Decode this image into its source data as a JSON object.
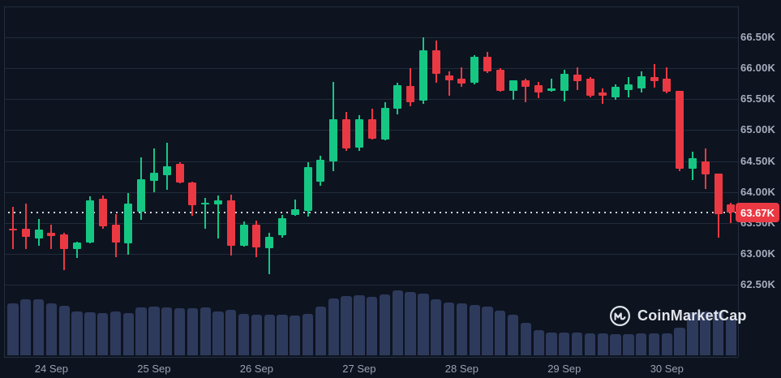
{
  "chart": {
    "current_price": {
      "label": "63.67K",
      "value": 63.67
    },
    "watermark": {
      "brand": "CoinMarketCap"
    },
    "colors": {
      "background": "#0D1420",
      "up": "#16C784",
      "down": "#EA3943",
      "volume": "#2E3A5C",
      "grid": "#212B3B",
      "axis_text": "#A8AEBF",
      "badge_bg": "#EA3943",
      "badge_text": "#FFFFFF",
      "dotted_line": "#E8EAF0"
    }
  },
  "chart_data": {
    "type": "candlestick",
    "title": "",
    "ylabel": "",
    "xlabel": "",
    "ylim": [
      62.5,
      67.0
    ],
    "grid": true,
    "legend_position": "none",
    "y_ticks": [
      "66.50K",
      "66.00K",
      "65.50K",
      "65.00K",
      "64.50K",
      "64.00K",
      "63.50K",
      "63.00K",
      "62.50K"
    ],
    "y_tick_values": [
      66.5,
      66.0,
      65.5,
      65.0,
      64.5,
      64.0,
      63.5,
      63.0,
      62.5
    ],
    "x_ticks": [
      "24 Sep",
      "25 Sep",
      "26 Sep",
      "27 Sep",
      "28 Sep",
      "29 Sep",
      "30 Sep"
    ],
    "x_tick_candle_indices": [
      3,
      11,
      19,
      27,
      35,
      43,
      51
    ],
    "candles_per_day": 8,
    "current_price": 63.67,
    "candles": [
      {
        "o": 63.4,
        "h": 63.76,
        "l": 63.08,
        "c": 63.38
      },
      {
        "o": 63.4,
        "h": 63.81,
        "l": 63.08,
        "c": 63.27
      },
      {
        "o": 63.25,
        "h": 63.56,
        "l": 63.13,
        "c": 63.39
      },
      {
        "o": 63.34,
        "h": 63.47,
        "l": 63.08,
        "c": 63.29
      },
      {
        "o": 63.32,
        "h": 63.34,
        "l": 62.74,
        "c": 63.08
      },
      {
        "o": 63.08,
        "h": 63.2,
        "l": 62.93,
        "c": 63.18
      },
      {
        "o": 63.18,
        "h": 63.93,
        "l": 63.17,
        "c": 63.86
      },
      {
        "o": 63.89,
        "h": 63.94,
        "l": 63.4,
        "c": 63.45
      },
      {
        "o": 63.47,
        "h": 63.64,
        "l": 62.95,
        "c": 63.18
      },
      {
        "o": 63.17,
        "h": 63.98,
        "l": 62.98,
        "c": 63.81
      },
      {
        "o": 63.68,
        "h": 64.56,
        "l": 63.55,
        "c": 64.21
      },
      {
        "o": 64.18,
        "h": 64.7,
        "l": 64.0,
        "c": 64.31
      },
      {
        "o": 64.27,
        "h": 64.79,
        "l": 64.04,
        "c": 64.42
      },
      {
        "o": 64.45,
        "h": 64.48,
        "l": 64.14,
        "c": 64.15
      },
      {
        "o": 64.15,
        "h": 64.16,
        "l": 63.62,
        "c": 63.78
      },
      {
        "o": 63.8,
        "h": 63.91,
        "l": 63.41,
        "c": 63.82
      },
      {
        "o": 63.8,
        "h": 63.94,
        "l": 63.25,
        "c": 63.86
      },
      {
        "o": 63.87,
        "h": 63.96,
        "l": 62.97,
        "c": 63.13
      },
      {
        "o": 63.13,
        "h": 63.52,
        "l": 63.11,
        "c": 63.47
      },
      {
        "o": 63.47,
        "h": 63.54,
        "l": 62.95,
        "c": 63.1
      },
      {
        "o": 63.09,
        "h": 63.34,
        "l": 62.67,
        "c": 63.28
      },
      {
        "o": 63.3,
        "h": 63.63,
        "l": 63.26,
        "c": 63.57
      },
      {
        "o": 63.63,
        "h": 63.88,
        "l": 63.61,
        "c": 63.72
      },
      {
        "o": 63.69,
        "h": 64.48,
        "l": 63.6,
        "c": 64.4
      },
      {
        "o": 64.16,
        "h": 64.58,
        "l": 64.1,
        "c": 64.52
      },
      {
        "o": 64.49,
        "h": 65.78,
        "l": 64.34,
        "c": 65.17
      },
      {
        "o": 65.17,
        "h": 65.3,
        "l": 64.67,
        "c": 64.7
      },
      {
        "o": 64.71,
        "h": 65.24,
        "l": 64.66,
        "c": 65.17
      },
      {
        "o": 65.17,
        "h": 65.34,
        "l": 64.84,
        "c": 64.86
      },
      {
        "o": 64.85,
        "h": 65.45,
        "l": 64.83,
        "c": 65.36
      },
      {
        "o": 65.34,
        "h": 65.77,
        "l": 65.25,
        "c": 65.73
      },
      {
        "o": 65.71,
        "h": 66.0,
        "l": 65.39,
        "c": 65.45
      },
      {
        "o": 65.48,
        "h": 66.5,
        "l": 65.42,
        "c": 66.29
      },
      {
        "o": 66.29,
        "h": 66.45,
        "l": 65.77,
        "c": 65.91
      },
      {
        "o": 65.88,
        "h": 65.95,
        "l": 65.56,
        "c": 65.8
      },
      {
        "o": 65.83,
        "h": 66.01,
        "l": 65.7,
        "c": 65.75
      },
      {
        "o": 65.76,
        "h": 66.21,
        "l": 65.74,
        "c": 66.19
      },
      {
        "o": 66.19,
        "h": 66.26,
        "l": 65.92,
        "c": 65.95
      },
      {
        "o": 65.97,
        "h": 66.0,
        "l": 65.62,
        "c": 65.64
      },
      {
        "o": 65.64,
        "h": 65.81,
        "l": 65.49,
        "c": 65.8
      },
      {
        "o": 65.8,
        "h": 65.83,
        "l": 65.45,
        "c": 65.7
      },
      {
        "o": 65.73,
        "h": 65.78,
        "l": 65.52,
        "c": 65.61
      },
      {
        "o": 65.63,
        "h": 65.83,
        "l": 65.62,
        "c": 65.67
      },
      {
        "o": 65.63,
        "h": 65.97,
        "l": 65.46,
        "c": 65.91
      },
      {
        "o": 65.9,
        "h": 66.02,
        "l": 65.65,
        "c": 65.79
      },
      {
        "o": 65.83,
        "h": 65.86,
        "l": 65.53,
        "c": 65.56
      },
      {
        "o": 65.61,
        "h": 65.68,
        "l": 65.43,
        "c": 65.55
      },
      {
        "o": 65.53,
        "h": 65.74,
        "l": 65.49,
        "c": 65.7
      },
      {
        "o": 65.65,
        "h": 65.86,
        "l": 65.53,
        "c": 65.74
      },
      {
        "o": 65.68,
        "h": 65.95,
        "l": 65.61,
        "c": 65.87
      },
      {
        "o": 65.86,
        "h": 66.07,
        "l": 65.68,
        "c": 65.79
      },
      {
        "o": 65.83,
        "h": 66.01,
        "l": 65.6,
        "c": 65.62
      },
      {
        "o": 65.64,
        "h": 65.64,
        "l": 64.34,
        "c": 64.37
      },
      {
        "o": 64.38,
        "h": 64.65,
        "l": 64.19,
        "c": 64.54
      },
      {
        "o": 64.49,
        "h": 64.7,
        "l": 64.05,
        "c": 64.28
      },
      {
        "o": 64.3,
        "h": 64.3,
        "l": 63.26,
        "c": 63.64
      },
      {
        "o": 63.8,
        "h": 63.82,
        "l": 63.49,
        "c": 63.67
      }
    ],
    "volume_rel": [
      64,
      69,
      69,
      64,
      61,
      54,
      53,
      52,
      54,
      52,
      59,
      60,
      59,
      58,
      58,
      59,
      54,
      56,
      51,
      50,
      50,
      50,
      49,
      51,
      60,
      70,
      73,
      74,
      72,
      75,
      80,
      78,
      76,
      69,
      65,
      64,
      62,
      60,
      55,
      50,
      40,
      31,
      28,
      28,
      28,
      27,
      27,
      26,
      26,
      27,
      27,
      27,
      34,
      53,
      54,
      54,
      45
    ]
  }
}
